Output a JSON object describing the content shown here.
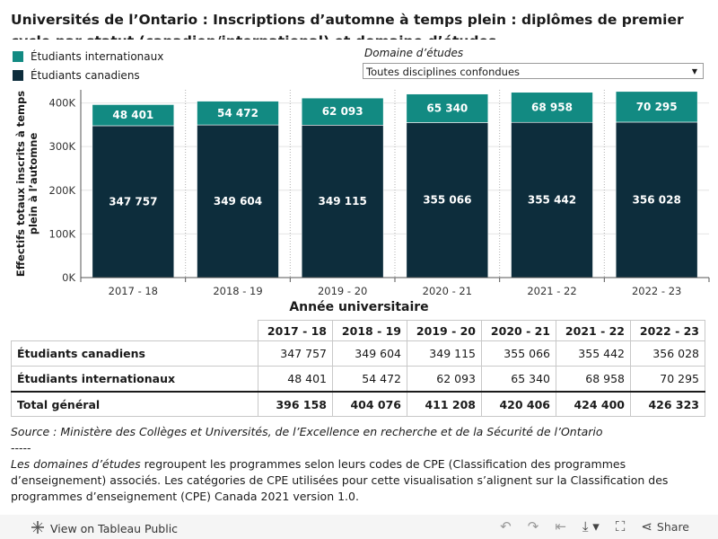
{
  "title": "Universités de l’Ontario : Inscriptions d’automne à temps plein : diplômes de premier cycle par statut (canadien/international) et domaine d’études",
  "legend": [
    {
      "label": "Étudiants internationaux",
      "color": "#128a82"
    },
    {
      "label": "Étudiants canadiens",
      "color": "#0d2d3c"
    }
  ],
  "filter": {
    "label": "Domaine d’études",
    "value": "Toutes disciplines confondues"
  },
  "chart_data": {
    "type": "bar",
    "stacked": true,
    "categories": [
      "2017 - 18",
      "2018 - 19",
      "2019 - 20",
      "2020 - 21",
      "2021 - 22",
      "2022 - 23"
    ],
    "series": [
      {
        "name": "Étudiants canadiens",
        "values": [
          347757,
          349604,
          349115,
          355066,
          355442,
          356028
        ],
        "labels": [
          "347 757",
          "349 604",
          "349 115",
          "355 066",
          "355 442",
          "356 028"
        ],
        "color": "#0d2d3c"
      },
      {
        "name": "Étudiants internationaux",
        "values": [
          48401,
          54472,
          62093,
          65340,
          68958,
          70295
        ],
        "labels": [
          "48 401",
          "54 472",
          "62 093",
          "65 340",
          "68 958",
          "70 295"
        ],
        "color": "#128a82"
      }
    ],
    "yticks": [
      0,
      100000,
      200000,
      300000,
      400000
    ],
    "ytick_labels": [
      "0K",
      "100K",
      "200K",
      "300K",
      "400K"
    ],
    "ylim": [
      0,
      430000
    ],
    "ylabel": "Effectifs totaux inscrits à temps plein à l’automne",
    "xlabel": "Année universitaire"
  },
  "table": {
    "headers": [
      "2017 - 18",
      "2018 - 19",
      "2019 - 20",
      "2020 - 21",
      "2021 - 22",
      "2022 - 23"
    ],
    "rows": [
      {
        "label": "Étudiants canadiens",
        "values": [
          "347 757",
          "349 604",
          "349 115",
          "355 066",
          "355 442",
          "356 028"
        ]
      },
      {
        "label": "Étudiants internationaux",
        "values": [
          "48 401",
          "54 472",
          "62 093",
          "65 340",
          "68 958",
          "70 295"
        ]
      }
    ],
    "total": {
      "label": "Total général",
      "values": [
        "396 158",
        "404 076",
        "411 208",
        "420 406",
        "424 400",
        "426 323"
      ]
    }
  },
  "source": {
    "line1": "Source : Ministère des Collèges et Universités, de l’Excellence en recherche et de la Sécurité de l’Ontario",
    "separator": "-----",
    "note_italic": "Les domaines d’études",
    "note_rest": " regroupent les programmes selon leurs codes de CPE (Classification des programmes d’enseignement) associés. Les catégories de CPE utilisées pour cette visualisation s’alignent sur la Classification des programmes d’enseignement (CPE) Canada 2021 version 1.0."
  },
  "footer": {
    "view_label": "View on Tableau Public",
    "share_label": "Share"
  }
}
